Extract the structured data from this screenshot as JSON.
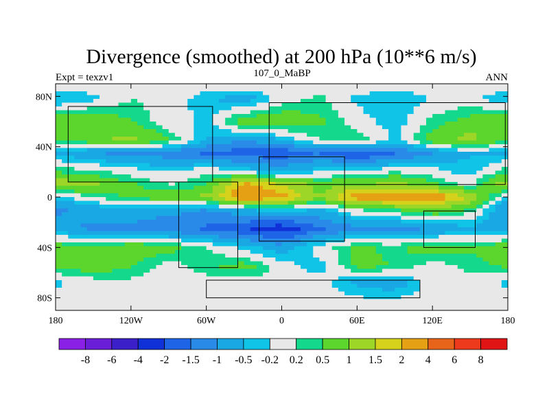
{
  "chart_data": {
    "type": "heatmap",
    "title": "Divergence (smoothed) at 200 hPa (10**6 m/s)",
    "left_label": "Expt = texzv1",
    "center_label": "107_0_MaBP",
    "right_label": "ANN",
    "xlim": [
      -180,
      180
    ],
    "ylim": [
      -90,
      90
    ],
    "x_ticks": [
      {
        "value": -180,
        "label": "180"
      },
      {
        "value": -120,
        "label": "120W"
      },
      {
        "value": -60,
        "label": "60W"
      },
      {
        "value": 0,
        "label": "0"
      },
      {
        "value": 60,
        "label": "60E"
      },
      {
        "value": 120,
        "label": "120E"
      },
      {
        "value": 180,
        "label": "180"
      }
    ],
    "y_ticks": [
      {
        "value": 80,
        "label": "80N"
      },
      {
        "value": 40,
        "label": "40N"
      },
      {
        "value": 0,
        "label": "0"
      },
      {
        "value": -40,
        "label": "40S"
      },
      {
        "value": -80,
        "label": "80S"
      }
    ],
    "colorbar_levels": [
      "-8",
      "-6",
      "-4",
      "-2",
      "-1.5",
      "-1",
      "-0.5",
      "-0.2",
      "0.2",
      "0.5",
      "1",
      "1.5",
      "2",
      "4",
      "6",
      "8"
    ],
    "colorbar_colors": [
      "#8a20e6",
      "#6a1ed8",
      "#3b1fc9",
      "#1030d8",
      "#1e64e6",
      "#2a8ae8",
      "#1aa8e4",
      "#10c4e8",
      "#e8e8e8",
      "#14d88c",
      "#5cd62c",
      "#9ed628",
      "#d6d21c",
      "#e6a014",
      "#e8641a",
      "#ee3a1c",
      "#e01414"
    ],
    "bands": [
      {
        "lat": 88,
        "values": [
          0.0,
          0.0,
          0.0,
          0.0,
          0.0,
          0.0,
          0.0,
          0.0,
          0.0,
          0.0,
          0.0,
          0.0,
          0.0
        ]
      },
      {
        "lat": 78,
        "values": [
          -0.6,
          -0.3,
          0.2,
          0.0,
          -0.4,
          -0.8,
          0.0,
          0.3,
          -0.3,
          -0.5,
          -0.2,
          0.0,
          -0.6
        ]
      },
      {
        "lat": 60,
        "values": [
          0.9,
          1.0,
          0.5,
          0.0,
          -0.3,
          0.8,
          0.9,
          0.6,
          0.0,
          -0.4,
          0.3,
          0.7,
          0.9
        ]
      },
      {
        "lat": 45,
        "values": [
          0.5,
          0.8,
          1.2,
          0.5,
          -0.5,
          -1.0,
          -0.6,
          0.2,
          0.5,
          -0.3,
          0.8,
          1.2,
          0.5
        ]
      },
      {
        "lat": 35,
        "values": [
          -0.6,
          -1.0,
          -1.1,
          -1.3,
          -1.6,
          -1.8,
          -1.9,
          -1.5,
          -2.1,
          -1.6,
          -1.0,
          -0.5,
          -0.6
        ]
      },
      {
        "lat": 20,
        "values": [
          0.5,
          0.3,
          0.0,
          -0.2,
          0.2,
          -0.2,
          -0.6,
          -0.2,
          0.0,
          0.2,
          0.0,
          -0.4,
          0.5
        ]
      },
      {
        "lat": 10,
        "values": [
          1.4,
          1.1,
          0.6,
          0.2,
          0.4,
          2.2,
          1.5,
          0.8,
          0.9,
          1.2,
          0.6,
          0.1,
          1.4
        ]
      },
      {
        "lat": 0,
        "values": [
          -0.4,
          0.2,
          0.6,
          0.8,
          1.2,
          2.6,
          2.2,
          1.0,
          2.4,
          2.4,
          2.6,
          1.4,
          -0.4
        ]
      },
      {
        "lat": -10,
        "values": [
          -1.1,
          -0.8,
          -0.6,
          -0.8,
          -1.0,
          -0.6,
          -0.2,
          -0.6,
          0.2,
          0.5,
          1.0,
          0.4,
          -1.1
        ]
      },
      {
        "lat": -25,
        "values": [
          -0.8,
          -1.1,
          -1.2,
          -1.4,
          -1.6,
          -2.0,
          -2.4,
          -1.6,
          -1.1,
          -1.2,
          -1.0,
          -0.6,
          -0.8
        ]
      },
      {
        "lat": -40,
        "values": [
          0.8,
          0.6,
          0.9,
          0.7,
          0.2,
          -0.3,
          -0.8,
          0.0,
          0.6,
          0.4,
          0.8,
          0.6,
          0.8
        ]
      },
      {
        "lat": -55,
        "values": [
          0.6,
          0.8,
          0.5,
          0.0,
          0.4,
          0.7,
          0.0,
          -0.4,
          0.6,
          0.5,
          0.0,
          0.3,
          0.6
        ]
      },
      {
        "lat": -68,
        "values": [
          -0.3,
          0.0,
          0.1,
          0.0,
          0.0,
          0.0,
          0.0,
          0.0,
          -0.6,
          -0.8,
          0.0,
          0.0,
          -0.3
        ]
      },
      {
        "lat": -85,
        "values": [
          0.0,
          0.0,
          0.0,
          0.0,
          0.0,
          0.0,
          0.0,
          0.0,
          0.0,
          0.0,
          0.0,
          0.0,
          0.0
        ]
      }
    ],
    "band_lons": [
      -180,
      -150,
      -120,
      -90,
      -60,
      -30,
      0,
      30,
      60,
      90,
      120,
      150,
      180
    ],
    "coastline_boxes": [
      {
        "name": "north-america",
        "west": -170,
        "east": -55,
        "south": 12,
        "north": 72
      },
      {
        "name": "south-america",
        "west": -82,
        "east": -35,
        "south": -56,
        "north": 12
      },
      {
        "name": "eurasia",
        "west": -10,
        "east": 178,
        "south": 10,
        "north": 75
      },
      {
        "name": "africa",
        "west": -18,
        "east": 50,
        "south": -35,
        "north": 32
      },
      {
        "name": "australia",
        "west": 113,
        "east": 154,
        "south": -40,
        "north": -11
      },
      {
        "name": "antarctica",
        "west": -60,
        "east": 110,
        "south": -80,
        "north": -66
      }
    ]
  }
}
